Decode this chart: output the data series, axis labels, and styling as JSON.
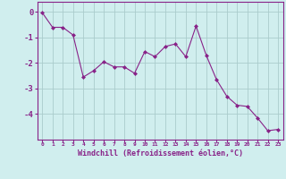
{
  "x": [
    0,
    1,
    2,
    3,
    4,
    5,
    6,
    7,
    8,
    9,
    10,
    11,
    12,
    13,
    14,
    15,
    16,
    17,
    18,
    19,
    20,
    21,
    22,
    23
  ],
  "y": [
    -0.03,
    -0.6,
    -0.6,
    -0.9,
    -2.55,
    -2.3,
    -1.95,
    -2.15,
    -2.15,
    -2.4,
    -1.55,
    -1.75,
    -1.35,
    -1.25,
    -1.75,
    -0.55,
    -1.7,
    -2.65,
    -3.3,
    -3.65,
    -3.7,
    -4.15,
    -4.65,
    -4.6
  ],
  "line_color": "#882288",
  "marker": "D",
  "marker_size": 2,
  "bg_color": "#d0eeee",
  "grid_color": "#aacccc",
  "spine_color": "#882288",
  "tick_color": "#882288",
  "xlabel": "Windchill (Refroidissement éolien,°C)",
  "xlabel_color": "#882288",
  "ylim": [
    -5.0,
    0.4
  ],
  "xlim": [
    -0.5,
    23.5
  ],
  "yticks": [
    0,
    -1,
    -2,
    -3,
    -4
  ],
  "xtick_labels": [
    "0",
    "1",
    "2",
    "3",
    "4",
    "5",
    "6",
    "7",
    "8",
    "9",
    "10",
    "11",
    "12",
    "13",
    "14",
    "15",
    "16",
    "17",
    "18",
    "19",
    "20",
    "21",
    "22",
    "23"
  ]
}
